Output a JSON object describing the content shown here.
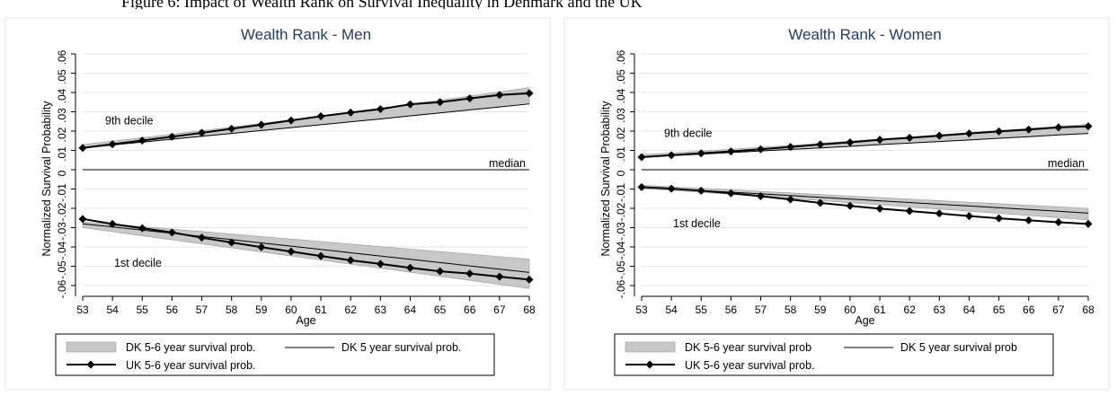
{
  "caption": "Figure 6: Impact of Wealth Rank on Survival Inequality in Denmark and the UK",
  "legend_labels": {
    "dk_band": "DK 5-6 year survival prob.",
    "dk_line": "DK 5 year survival prob.",
    "uk_line": "UK 5-6 year survival prob."
  },
  "chart_data": [
    {
      "type": "line",
      "title": "Wealth Rank - Men",
      "xlabel": "Age",
      "ylabel": "Normalized Survival Probability",
      "x": [
        53,
        54,
        55,
        56,
        57,
        58,
        59,
        60,
        61,
        62,
        63,
        64,
        65,
        66,
        67,
        68
      ],
      "xlim": [
        53,
        68
      ],
      "ylim": [
        -0.06,
        0.06
      ],
      "yticks": [
        "-.06",
        "-.05",
        "-.04",
        "-.03",
        "-.02",
        "-.01",
        "0",
        ".01",
        ".02",
        ".03",
        ".04",
        ".05",
        ".06"
      ],
      "colors": {
        "band": "#c8c8c8",
        "line": "#000000",
        "grid": "#e6e6e6"
      },
      "annotations": {
        "top": "9th decile",
        "median": "median",
        "bottom": "1st decile"
      },
      "legend": {
        "placement": "bottom",
        "items": [
          "DK 5-6 year survival prob.",
          "DK 5 year survival prob.",
          "UK 5-6 year survival prob."
        ]
      },
      "series": [
        {
          "name": "UK 5-6 year survival prob.",
          "kind": "line-markers",
          "values_9th": [
            0.0113,
            0.0132,
            0.0151,
            0.0171,
            0.0191,
            0.0212,
            0.0233,
            0.0255,
            0.0277,
            0.0296,
            0.0314,
            0.0339,
            0.035,
            0.0369,
            0.0387,
            0.0396
          ],
          "values_1st": [
            -0.0255,
            -0.0281,
            -0.0303,
            -0.0325,
            -0.0352,
            -0.0377,
            -0.0401,
            -0.0424,
            -0.0447,
            -0.0469,
            -0.0488,
            -0.0508,
            -0.0526,
            -0.0538,
            -0.0554,
            -0.0569
          ]
        },
        {
          "name": "DK 5 year survival prob.",
          "kind": "line",
          "values_9th": [
            0.0113,
            0.0128,
            0.0143,
            0.0158,
            0.0173,
            0.0188,
            0.0203,
            0.0218,
            0.0233,
            0.0248,
            0.0263,
            0.0279,
            0.0294,
            0.031,
            0.0325,
            0.0341
          ],
          "values_1st": [
            -0.028,
            -0.0296,
            -0.0313,
            -0.0329,
            -0.0346,
            -0.0362,
            -0.0379,
            -0.0396,
            -0.0413,
            -0.043,
            -0.0447,
            -0.0464,
            -0.0481,
            -0.0498,
            -0.0515,
            -0.0532
          ]
        },
        {
          "name": "DK 5-6 year survival prob.",
          "kind": "band",
          "upper_9th": [
            0.013,
            0.0148,
            0.0166,
            0.0184,
            0.0202,
            0.0221,
            0.024,
            0.0259,
            0.0279,
            0.0299,
            0.0319,
            0.034,
            0.0361,
            0.0382,
            0.0403,
            0.0425
          ],
          "lower_9th": [
            0.0113,
            0.0128,
            0.0143,
            0.0158,
            0.0173,
            0.0188,
            0.0203,
            0.0218,
            0.0233,
            0.0248,
            0.0263,
            0.0279,
            0.0294,
            0.031,
            0.0325,
            0.0341
          ],
          "upper_1st": [
            -0.027,
            -0.0282,
            -0.0295,
            -0.0308,
            -0.032,
            -0.0333,
            -0.0346,
            -0.0359,
            -0.0372,
            -0.0385,
            -0.0398,
            -0.0411,
            -0.0424,
            -0.0437,
            -0.045,
            -0.0463
          ],
          "lower_1st": [
            -0.03,
            -0.0321,
            -0.0342,
            -0.0363,
            -0.0384,
            -0.0405,
            -0.0426,
            -0.0447,
            -0.0468,
            -0.0489,
            -0.051,
            -0.0531,
            -0.0552,
            -0.0573,
            -0.0594,
            -0.0615
          ]
        }
      ]
    },
    {
      "type": "line",
      "title": "Wealth Rank - Women",
      "xlabel": "Age",
      "ylabel": "Normalized Survival Probability",
      "x": [
        53,
        54,
        55,
        56,
        57,
        58,
        59,
        60,
        61,
        62,
        63,
        64,
        65,
        66,
        67,
        68
      ],
      "xlim": [
        53,
        68
      ],
      "ylim": [
        -0.06,
        0.06
      ],
      "yticks": [
        "-.06",
        "-.05",
        "-.04",
        "-.03",
        "-.02",
        "-.01",
        "0",
        ".01",
        ".02",
        ".03",
        ".04",
        ".05",
        ".06"
      ],
      "colors": {
        "band": "#c8c8c8",
        "line": "#000000",
        "grid": "#e6e6e6"
      },
      "annotations": {
        "top": "9th decile",
        "median": "median",
        "bottom": "1st decile"
      },
      "legend": {
        "placement": "bottom",
        "items": [
          "DK 5-6 year survival prob",
          "DK 5 year survival prob",
          "UK 5-6 year survival prob."
        ]
      },
      "series": [
        {
          "name": "UK 5-6 year survival prob.",
          "kind": "line-markers",
          "values_9th": [
            0.0065,
            0.0075,
            0.0085,
            0.0095,
            0.0106,
            0.0118,
            0.0131,
            0.0142,
            0.0155,
            0.0165,
            0.0176,
            0.0188,
            0.0198,
            0.0208,
            0.0219,
            0.0225
          ],
          "values_1st": [
            -0.009,
            -0.0098,
            -0.0109,
            -0.0122,
            -0.0137,
            -0.0154,
            -0.0172,
            -0.0187,
            -0.0202,
            -0.0214,
            -0.0227,
            -0.024,
            -0.0252,
            -0.0262,
            -0.0272,
            -0.0281
          ]
        },
        {
          "name": "DK 5 year survival prob",
          "kind": "line",
          "values_9th": [
            0.0065,
            0.0073,
            0.0081,
            0.0089,
            0.0097,
            0.0105,
            0.0113,
            0.0121,
            0.013,
            0.0138,
            0.0146,
            0.0154,
            0.0163,
            0.0171,
            0.018,
            0.0188
          ],
          "values_1st": [
            -0.009,
            -0.0099,
            -0.0108,
            -0.0116,
            -0.0125,
            -0.0134,
            -0.0143,
            -0.0152,
            -0.0161,
            -0.017,
            -0.0179,
            -0.0188,
            -0.0197,
            -0.0206,
            -0.0215,
            -0.0225
          ]
        },
        {
          "name": "DK 5-6 year survival prob",
          "kind": "band",
          "upper_9th": [
            0.0078,
            0.0087,
            0.0096,
            0.0106,
            0.0116,
            0.0126,
            0.0137,
            0.0148,
            0.0159,
            0.017,
            0.0181,
            0.0192,
            0.0203,
            0.0214,
            0.0225,
            0.0236
          ],
          "lower_9th": [
            0.0065,
            0.0073,
            0.0081,
            0.0089,
            0.0097,
            0.0105,
            0.0113,
            0.0121,
            0.013,
            0.0138,
            0.0146,
            0.0154,
            0.0163,
            0.0171,
            0.018,
            0.0188
          ],
          "upper_1st": [
            -0.008,
            -0.0088,
            -0.0096,
            -0.0104,
            -0.0112,
            -0.012,
            -0.0128,
            -0.0136,
            -0.0144,
            -0.0152,
            -0.016,
            -0.0168,
            -0.0176,
            -0.0184,
            -0.0192,
            -0.02
          ],
          "lower_1st": [
            -0.0098,
            -0.0107,
            -0.0117,
            -0.0127,
            -0.0138,
            -0.0149,
            -0.016,
            -0.0171,
            -0.0182,
            -0.0193,
            -0.0204,
            -0.0215,
            -0.0226,
            -0.0237,
            -0.0248,
            -0.026
          ]
        }
      ]
    }
  ]
}
